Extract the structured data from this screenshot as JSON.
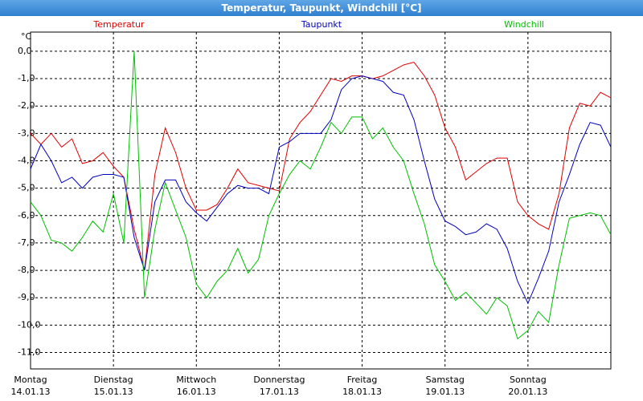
{
  "window_title": "Temperatur, Taupunkt, Windchill [°C]",
  "chart_data": {
    "type": "line",
    "y_unit": "°C",
    "x": [
      0,
      0.125,
      0.25,
      0.375,
      0.5,
      0.625,
      0.75,
      0.875,
      1,
      1.125,
      1.25,
      1.375,
      1.5,
      1.625,
      1.75,
      1.875,
      2,
      2.125,
      2.25,
      2.375,
      2.5,
      2.625,
      2.75,
      2.875,
      3,
      3.125,
      3.25,
      3.375,
      3.5,
      3.625,
      3.75,
      3.875,
      4,
      4.125,
      4.25,
      4.375,
      4.5,
      4.625,
      4.75,
      4.875,
      5,
      5.125,
      5.25,
      5.375,
      5.5,
      5.625,
      5.75,
      5.875,
      6,
      6.125,
      6.25,
      6.375,
      6.5,
      6.625,
      6.75,
      6.875,
      7
    ],
    "xlim": [
      0,
      7
    ],
    "xticks": [
      {
        "value": 0,
        "label": "Montag\n14.01.13"
      },
      {
        "value": 1,
        "label": "Dienstag\n15.01.13"
      },
      {
        "value": 2,
        "label": "Mittwoch\n16.01.13"
      },
      {
        "value": 3,
        "label": "Donnerstag\n17.01.13"
      },
      {
        "value": 4,
        "label": "Freitag\n18.01.13"
      },
      {
        "value": 5,
        "label": "Samstag\n19.01.13"
      },
      {
        "value": 6,
        "label": "Sonntag\n20.01.13"
      }
    ],
    "ylim": [
      -11.6,
      0.7
    ],
    "yticks": [
      {
        "value": 0,
        "label": "0,0"
      },
      {
        "value": -1,
        "label": "-1,0"
      },
      {
        "value": -2,
        "label": "-2,0"
      },
      {
        "value": -3,
        "label": "-3,0"
      },
      {
        "value": -4,
        "label": "-4,0"
      },
      {
        "value": -5,
        "label": "-5,0"
      },
      {
        "value": -6,
        "label": "-6,0"
      },
      {
        "value": -7,
        "label": "-7,0"
      },
      {
        "value": -8,
        "label": "-8,0"
      },
      {
        "value": -9,
        "label": "-9,0"
      },
      {
        "value": -10,
        "label": "-10,0"
      },
      {
        "value": -11,
        "label": "-11,0"
      }
    ],
    "grid": true,
    "series": [
      {
        "name": "Temperatur",
        "color": "#e00000",
        "values": [
          -3.0,
          -3.4,
          -3.0,
          -3.5,
          -3.2,
          -4.1,
          -4.0,
          -3.7,
          -4.2,
          -4.6,
          -6.5,
          -8.0,
          -4.5,
          -2.8,
          -3.7,
          -5.0,
          -5.8,
          -5.8,
          -5.6,
          -5.0,
          -4.3,
          -4.8,
          -4.9,
          -5.0,
          -5.1,
          -3.2,
          -2.6,
          -2.2,
          -1.6,
          -1.0,
          -1.1,
          -0.9,
          -0.9,
          -1.0,
          -0.9,
          -0.7,
          -0.5,
          -0.4,
          -0.9,
          -1.6,
          -2.8,
          -3.5,
          -4.7,
          -4.4,
          -4.1,
          -3.9,
          -3.9,
          -5.5,
          -6.0,
          -6.3,
          -6.5,
          -5.2,
          -2.8,
          -1.9,
          -2.0,
          -1.5,
          -1.7
        ]
      },
      {
        "name": "Taupunkt",
        "color": "#0000c0",
        "values": [
          -4.3,
          -3.4,
          -4.0,
          -4.8,
          -4.6,
          -5.0,
          -4.6,
          -4.5,
          -4.5,
          -4.6,
          -6.8,
          -8.0,
          -5.5,
          -4.7,
          -4.7,
          -5.5,
          -5.9,
          -6.2,
          -5.7,
          -5.2,
          -4.9,
          -5.0,
          -5.0,
          -5.2,
          -3.5,
          -3.3,
          -3.0,
          -3.0,
          -3.0,
          -2.5,
          -1.4,
          -1.0,
          -0.9,
          -1.0,
          -1.1,
          -1.5,
          -1.6,
          -2.5,
          -4.0,
          -5.4,
          -6.2,
          -6.4,
          -6.7,
          -6.6,
          -6.3,
          -6.5,
          -7.2,
          -8.4,
          -9.2,
          -8.3,
          -7.3,
          -5.5,
          -4.5,
          -3.4,
          -2.6,
          -2.7,
          -3.5
        ]
      },
      {
        "name": "Windchill",
        "color": "#00c000",
        "values": [
          -5.5,
          -6.0,
          -6.9,
          -7.0,
          -7.3,
          -6.8,
          -6.2,
          -6.6,
          -5.2,
          -7.0,
          0.0,
          -9.0,
          -6.5,
          -4.8,
          -5.8,
          -6.8,
          -8.5,
          -9.0,
          -8.4,
          -8.0,
          -7.2,
          -8.1,
          -7.6,
          -6.0,
          -5.2,
          -4.5,
          -4.0,
          -4.3,
          -3.5,
          -2.6,
          -3.0,
          -2.4,
          -2.4,
          -3.2,
          -2.8,
          -3.5,
          -4.0,
          -5.2,
          -6.3,
          -7.8,
          -8.4,
          -9.1,
          -8.8,
          -9.2,
          -9.6,
          -9.0,
          -9.3,
          -10.5,
          -10.2,
          -9.5,
          -9.9,
          -7.8,
          -6.1,
          -6.0,
          -5.9,
          -6.0,
          -6.7
        ]
      }
    ]
  }
}
